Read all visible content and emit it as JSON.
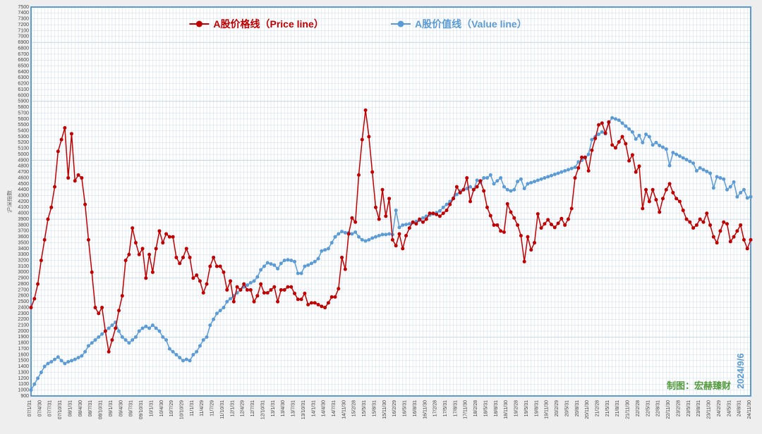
{
  "chart": {
    "type": "line",
    "background_color": "#ffffff",
    "page_background": "#eeeeee",
    "border_color": "#5b9bd5",
    "grid_color_minor": "#cddbe8",
    "grid_color_major": "#b9cfe3",
    "y_axis": {
      "ymin": 900,
      "ymax": 7500,
      "tick_step": 100,
      "major_every": 10,
      "title": "沪深指数",
      "label_fontsize": 7
    },
    "x_axis": {
      "labels": [
        "07/1/31",
        "07/4/30",
        "07/7/31",
        "07/10/31",
        "08/1/31",
        "08/4/30",
        "08/7/31",
        "08/10/31",
        "09/1/31",
        "09/4/30",
        "09/7/31",
        "09/10/31",
        "10/1/31",
        "10/4/30",
        "10/7/29",
        "10/10/29",
        "11/1/31",
        "11/4/29",
        "11/7/29",
        "11/10/31",
        "12/1/31",
        "12/4/29",
        "12/7/31",
        "12/10/31",
        "13/1/31",
        "13/4/30",
        "13/7/31",
        "13/10/31",
        "14/1/31",
        "14/4/30",
        "14/7/31",
        "14/11/30",
        "15/2/28",
        "15/5/31",
        "15/8/31",
        "15/11/30",
        "16/2/29",
        "16/5/31",
        "16/8/31",
        "16/11/30",
        "17/2/28",
        "17/5/31",
        "17/8/31",
        "17/11/30",
        "18/2/28",
        "18/5/31",
        "18/8/31",
        "18/11/30",
        "19/2/28",
        "19/5/31",
        "19/8/31",
        "19/11/30",
        "20/2/29",
        "20/5/31",
        "20/8/31",
        "20/11/30",
        "21/2/28",
        "21/5/31",
        "21/8/31",
        "21/11/30",
        "22/2/28",
        "22/5/31",
        "22/8/31",
        "22/11/30",
        "23/2/28",
        "23/5/31",
        "23/8/31",
        "23/11/30",
        "24/2/29",
        "24/5/31",
        "24/8/31",
        "24/11/30"
      ],
      "label_fontsize": 7
    },
    "legend": {
      "items": [
        {
          "marker": "circle",
          "color": "#c00000",
          "label": "A股价格线（Price line）"
        },
        {
          "marker": "circle",
          "color": "#5b9bd5",
          "label": "A股价值线（Value line）"
        }
      ],
      "fontsize": 14
    },
    "series": {
      "price": {
        "color": "#c00000",
        "line_width": 1.5,
        "marker": "circle",
        "marker_size": 2.5,
        "values": [
          2400,
          2550,
          2800,
          3200,
          3550,
          3900,
          4100,
          4450,
          5050,
          5250,
          5450,
          4600,
          5350,
          4550,
          4650,
          4600,
          4150,
          3550,
          3000,
          2400,
          2300,
          2400,
          2000,
          1650,
          1850,
          2050,
          2350,
          2600,
          3200,
          3300,
          3750,
          3500,
          3300,
          3400,
          2900,
          3300,
          3000,
          3400,
          3700,
          3500,
          3650,
          3600,
          3600,
          3250,
          3150,
          3250,
          3400,
          3250,
          2900,
          2950,
          2850,
          2650,
          2800,
          3100,
          3250,
          3100,
          3100,
          3000,
          2700,
          2850,
          2500,
          2750,
          2700,
          2800,
          2700,
          2700,
          2500,
          2600,
          2800,
          2650,
          2650,
          2700,
          2750,
          2500,
          2700,
          2700,
          2750,
          2750,
          2640,
          2540,
          2540,
          2640,
          2450,
          2480,
          2480,
          2450,
          2420,
          2400,
          2480,
          2580,
          2580,
          2720,
          3250,
          3050,
          3650,
          3920,
          3850,
          4650,
          5250,
          5750,
          5300,
          4700,
          4100,
          3900,
          4400,
          3950,
          4250,
          3550,
          3450,
          3650,
          3400,
          3620,
          3750,
          3850,
          3820,
          3900,
          3850,
          3900,
          4000,
          4000,
          3980,
          3950,
          4000,
          4050,
          4150,
          4250,
          4450,
          4350,
          4400,
          4600,
          4200,
          4400,
          4450,
          4550,
          4380,
          4100,
          3960,
          3800,
          3800,
          3700,
          3680,
          4160,
          4020,
          3920,
          3800,
          3620,
          3180,
          3600,
          3380,
          3500,
          3990,
          3750,
          3820,
          3890,
          3810,
          3760,
          3830,
          3910,
          3800,
          3900,
          4080,
          4600,
          4770,
          4950,
          4950,
          4720,
          5070,
          5270,
          5500,
          5530,
          5360,
          5550,
          5160,
          5110,
          5210,
          5300,
          5180,
          4890,
          4990,
          4700,
          4800,
          4080,
          4400,
          4200,
          4400,
          4230,
          4020,
          4250,
          4400,
          4500,
          4350,
          4250,
          4200,
          4050,
          3900,
          3850,
          3750,
          3800,
          3900,
          3850,
          4000,
          3800,
          3600,
          3500,
          3700,
          3850,
          3820,
          3520,
          3600,
          3700,
          3800,
          3550,
          3400,
          3550
        ]
      },
      "value": {
        "color": "#5b9bd5",
        "line_width": 1.5,
        "marker": "circle",
        "marker_size": 2.5,
        "values": [
          1000,
          1100,
          1200,
          1300,
          1400,
          1450,
          1480,
          1520,
          1560,
          1500,
          1450,
          1480,
          1500,
          1520,
          1550,
          1580,
          1650,
          1750,
          1800,
          1850,
          1900,
          1950,
          2000,
          2050,
          2100,
          2150,
          2000,
          1900,
          1850,
          1800,
          1850,
          1900,
          2000,
          2050,
          2080,
          2050,
          2100,
          2050,
          2000,
          1900,
          1850,
          1700,
          1650,
          1600,
          1550,
          1500,
          1520,
          1500,
          1600,
          1650,
          1750,
          1850,
          1900,
          2100,
          2200,
          2300,
          2350,
          2400,
          2500,
          2550,
          2600,
          2650,
          2700,
          2750,
          2780,
          2820,
          2850,
          2920,
          3040,
          3100,
          3160,
          3140,
          3120,
          3060,
          3150,
          3200,
          3210,
          3200,
          3180,
          2980,
          2980,
          3100,
          3120,
          3150,
          3180,
          3230,
          3360,
          3380,
          3400,
          3500,
          3600,
          3650,
          3690,
          3670,
          3670,
          3650,
          3680,
          3600,
          3550,
          3530,
          3550,
          3580,
          3600,
          3620,
          3640,
          3640,
          3650,
          3640,
          4050,
          3760,
          3800,
          3810,
          3820,
          3840,
          3860,
          3880,
          3920,
          3950,
          3970,
          3990,
          4010,
          4040,
          4100,
          4150,
          4200,
          4260,
          4320,
          4380,
          4400,
          4420,
          4450,
          4400,
          4560,
          4520,
          4600,
          4600,
          4650,
          4500,
          4550,
          4600,
          4450,
          4400,
          4380,
          4400,
          4540,
          4580,
          4420,
          4500,
          4520,
          4540,
          4560,
          4580,
          4600,
          4620,
          4640,
          4660,
          4680,
          4700,
          4720,
          4740,
          4760,
          4780,
          4870,
          4900,
          4940,
          5000,
          5250,
          5300,
          5340,
          5380,
          5350,
          5540,
          5620,
          5600,
          5580,
          5530,
          5480,
          5430,
          5380,
          5260,
          5320,
          5200,
          5340,
          5300,
          5160,
          5200,
          5150,
          5120,
          5090,
          4810,
          5030,
          5000,
          4970,
          4940,
          4910,
          4880,
          4850,
          4720,
          4770,
          4740,
          4710,
          4680,
          4430,
          4620,
          4600,
          4580,
          4400,
          4450,
          4530,
          4280,
          4350,
          4400,
          4260,
          4280
        ]
      }
    },
    "annotation": {
      "main": "制图：宏赫臻财",
      "main_color": "#539a3d",
      "date": "2024/9/6",
      "date_color": "#5b9bd5",
      "fontsize": 13
    }
  }
}
